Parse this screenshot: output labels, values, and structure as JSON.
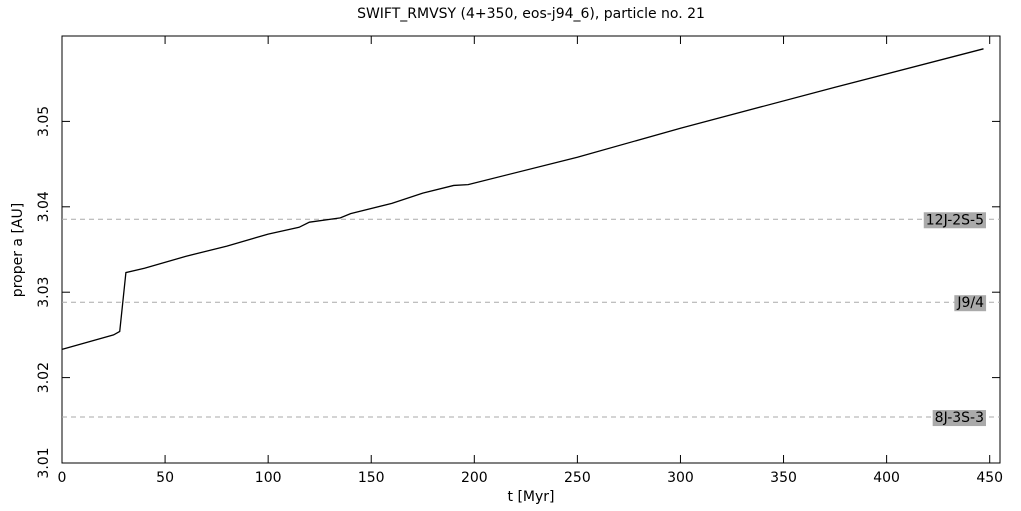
{
  "chart_data": {
    "type": "line",
    "title": "SWIFT_RMVSY (4+350, eos-j94_6), particle no. 21",
    "x_label": "t [Myr]",
    "y_label": "proper a [AU]",
    "x": [
      0,
      25,
      28,
      31,
      40,
      60,
      80,
      100,
      115,
      120,
      135,
      140,
      160,
      175,
      190,
      197,
      250,
      300,
      375,
      447
    ],
    "series": [
      {
        "name": "proper a",
        "color": "#000000",
        "values": [
          3.0233,
          3.025,
          3.0254,
          3.0323,
          3.0328,
          3.0342,
          3.0354,
          3.0368,
          3.0376,
          3.0382,
          3.0387,
          3.0392,
          3.0404,
          3.0416,
          3.0425,
          3.0426,
          3.0458,
          3.0492,
          3.054,
          3.0585
        ]
      }
    ],
    "resonances": [
      {
        "label": "12J-2S-5",
        "value": 3.03854
      },
      {
        "label": "J9/4",
        "value": 3.02883
      },
      {
        "label": "8J-3S-3",
        "value": 3.01538
      }
    ],
    "resonance_color": "#aaaaaa",
    "xlim": [
      0,
      455
    ],
    "ylim": [
      3.01,
      3.06
    ],
    "xticks": [
      0,
      50,
      100,
      150,
      200,
      250,
      300,
      350,
      400,
      450
    ],
    "yticks": [
      3.01,
      3.02,
      3.03,
      3.04,
      3.05
    ]
  }
}
